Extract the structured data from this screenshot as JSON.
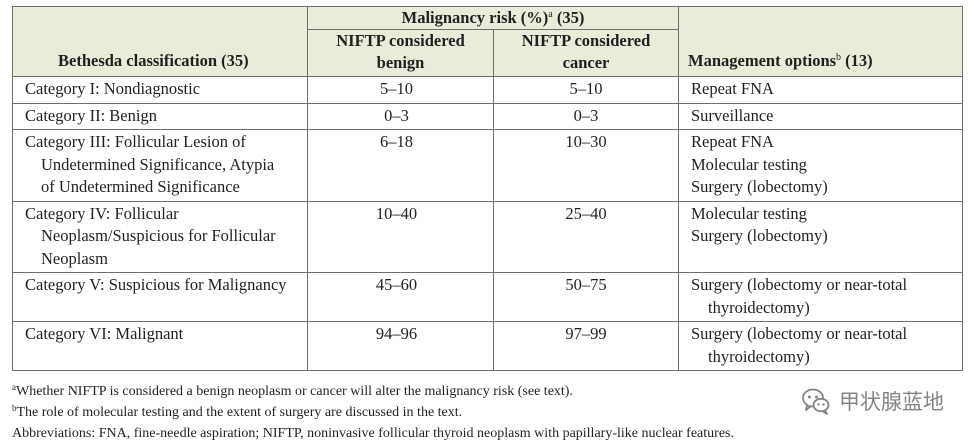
{
  "table": {
    "header": {
      "classification": "Bethesda classification (35)",
      "risk_label": "Malignancy risk (%)",
      "risk_sup": "a",
      "risk_ref": " (35)",
      "benign_line1": "NIFTP considered",
      "benign_line2": "benign",
      "cancer_line1": "NIFTP considered",
      "cancer_line2": "cancer",
      "management_label": "Management options",
      "management_sup": "b",
      "management_ref": " (13)"
    },
    "rows": [
      {
        "category": [
          "Category I: Nondiagnostic"
        ],
        "benign": "5–10",
        "cancer": "5–10",
        "management": [
          [
            "Repeat FNA"
          ]
        ]
      },
      {
        "category": [
          "Category II: Benign"
        ],
        "benign": "0–3",
        "cancer": "0–3",
        "management": [
          [
            "Surveillance"
          ]
        ]
      },
      {
        "category": [
          "Category III: Follicular Lesion of",
          "Undetermined Significance, Atypia",
          "of Undetermined Significance"
        ],
        "benign": "6–18",
        "cancer": "10–30",
        "management": [
          [
            "Repeat FNA"
          ],
          [
            "Molecular testing"
          ],
          [
            "Surgery (lobectomy)"
          ]
        ]
      },
      {
        "category": [
          "Category IV: Follicular",
          "Neoplasm/Suspicious for Follicular",
          "Neoplasm"
        ],
        "benign": "10–40",
        "cancer": "25–40",
        "management": [
          [
            "Molecular testing"
          ],
          [
            "Surgery (lobectomy)"
          ]
        ]
      },
      {
        "category": [
          "Category V: Suspicious for Malignancy"
        ],
        "benign": "45–60",
        "cancer": "50–75",
        "management": [
          [
            "Surgery (lobectomy or near-total",
            "thyroidectomy)"
          ]
        ]
      },
      {
        "category": [
          "Category VI: Malignant"
        ],
        "benign": "94–96",
        "cancer": "97–99",
        "management": [
          [
            "Surgery (lobectomy or near-total",
            "thyroidectomy)"
          ]
        ]
      }
    ]
  },
  "footnotes": {
    "a_mark": "a",
    "a_text": "Whether NIFTP is considered a benign neoplasm or cancer will alter the malignancy risk (see text).",
    "b_mark": "b",
    "b_text": "The role of molecular testing and the extent of surgery are discussed in the text.",
    "abbreviations": "Abbreviations: FNA, fine-needle aspiration; NIFTP, noninvasive follicular thyroid neoplasm with papillary-like nuclear features."
  },
  "watermark": {
    "icon": "wechat-icon",
    "text": "甲状腺蓝地"
  }
}
